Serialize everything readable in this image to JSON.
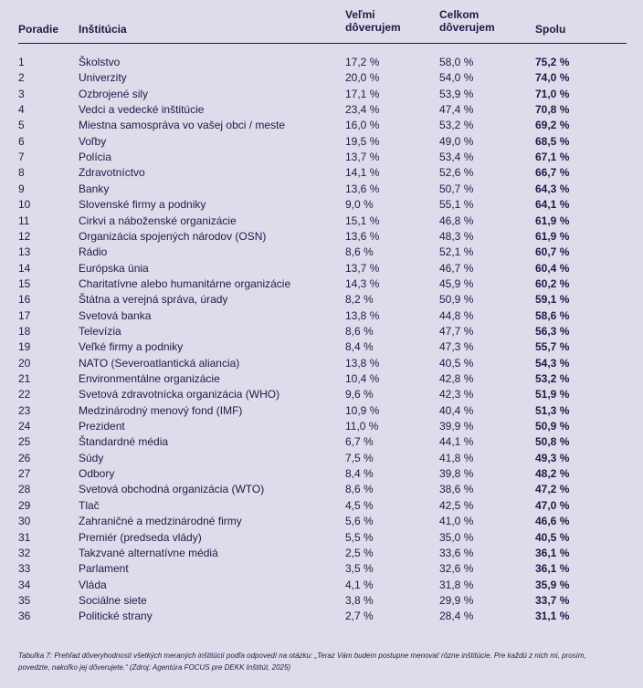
{
  "table": {
    "header": [
      "Poradie",
      "Inštitúcia",
      "Veľmi dôverujem",
      "Celkom dôverujem",
      "Spolu"
    ],
    "rows": [
      [
        "1",
        "Školstvo",
        "17,2 %",
        "58,0 %",
        "75,2 %"
      ],
      [
        "2",
        "Univerzity",
        "20,0 %",
        "54,0 %",
        "74,0 %"
      ],
      [
        "3",
        "Ozbrojené sily",
        "17,1 %",
        "53,9 %",
        "71,0 %"
      ],
      [
        "4",
        "Vedci a vedecké inštitúcie",
        "23,4 %",
        "47,4 %",
        "70,8 %"
      ],
      [
        "5",
        "Miestna samospráva vo vašej obci / meste",
        "16,0 %",
        "53,2 %",
        "69,2 %"
      ],
      [
        "6",
        "Voľby",
        "19,5 %",
        "49,0 %",
        "68,5 %"
      ],
      [
        "7",
        "Polícia",
        "13,7 %",
        "53,4 %",
        "67,1 %"
      ],
      [
        "8",
        "Zdravotníctvo",
        "14,1 %",
        "52,6 %",
        "66,7 %"
      ],
      [
        "9",
        "Banky",
        "13,6 %",
        "50,7 %",
        "64,3 %"
      ],
      [
        "10",
        "Slovenské firmy a podniky",
        "9,0 %",
        "55,1 %",
        "64,1 %"
      ],
      [
        "11",
        "Cirkvi a náboženské organizácie",
        "15,1 %",
        "46,8 %",
        "61,9 %"
      ],
      [
        "12",
        "Organizácia spojených národov (OSN)",
        "13,6 %",
        "48,3 %",
        "61,9 %"
      ],
      [
        "13",
        "Rádio",
        "8,6 %",
        "52,1 %",
        "60,7 %"
      ],
      [
        "14",
        "Európska únia",
        "13,7 %",
        "46,7 %",
        "60,4 %"
      ],
      [
        "15",
        "Charitatívne alebo humanitárne organizácie",
        "14,3 %",
        "45,9 %",
        "60,2 %"
      ],
      [
        "16",
        "Štátna a verejná správa, úrady",
        "8,2 %",
        "50,9 %",
        "59,1 %"
      ],
      [
        "17",
        "Svetová banka",
        "13,8 %",
        "44,8 %",
        "58,6 %"
      ],
      [
        "18",
        "Televízia",
        "8,6 %",
        "47,7 %",
        "56,3 %"
      ],
      [
        "19",
        "Veľké firmy a podniky",
        "8,4 %",
        "47,3 %",
        "55,7 %"
      ],
      [
        "20",
        "NATO (Severoatlantická aliancia)",
        "13,8 %",
        "40,5 %",
        "54,3 %"
      ],
      [
        "21",
        "Environmentálne organizácie",
        "10,4 %",
        "42,8 %",
        "53,2 %"
      ],
      [
        "22",
        "Svetová zdravotnícka organizácia (WHO)",
        "9,6 %",
        "42,3 %",
        "51,9 %"
      ],
      [
        "23",
        "Medzinárodný menový fond (IMF)",
        "10,9 %",
        "40,4 %",
        "51,3 %"
      ],
      [
        "24",
        "Prezident",
        "11,0 %",
        "39,9 %",
        "50,9 %"
      ],
      [
        "25",
        "Štandardné média",
        "6,7 %",
        "44,1 %",
        "50,8 %"
      ],
      [
        "26",
        "Súdy",
        "7,5 %",
        "41,8 %",
        "49,3 %"
      ],
      [
        "27",
        "Odbory",
        "8,4 %",
        "39,8 %",
        "48,2 %"
      ],
      [
        "28",
        "Svetová obchodná organizácia (WTO)",
        "8,6 %",
        "38,6 %",
        "47,2 %"
      ],
      [
        "29",
        "Tlač",
        "4,5 %",
        "42,5 %",
        "47,0 %"
      ],
      [
        "30",
        "Zahraničné a medzinárodné firmy",
        "5,6 %",
        "41,0 %",
        "46,6 %"
      ],
      [
        "31",
        "Premiér (predseda vlády)",
        "5,5 %",
        "35,0 %",
        "40,5 %"
      ],
      [
        "32",
        "Takzvané alternatívne médiá",
        "2,5 %",
        "33,6 %",
        "36,1 %"
      ],
      [
        "33",
        "Parlament",
        "3,5 %",
        "32,6 %",
        "36,1 %"
      ],
      [
        "34",
        "Vláda",
        "4,1 %",
        "31,8 %",
        "35,9 %"
      ],
      [
        "35",
        "Sociálne siete",
        "3,8 %",
        "29,9 %",
        "33,7 %"
      ],
      [
        "36",
        "Politické strany",
        "2,7 %",
        "28,4 %",
        "31,1 %"
      ]
    ]
  },
  "caption": "Tabuľka 7: Prehľad dôveryhodnosti všetkých meraných inštitúcií podľa odpovedí na otázku: „Teraz Vám budem postupne menovať rôzne inštitúcie. Pre každú z nich mi, prosím, povedzte, nakoľko jej dôverujete.“ (Zdroj: Agentúra FOCUS pre DEKK Inštitút, 2025)"
}
